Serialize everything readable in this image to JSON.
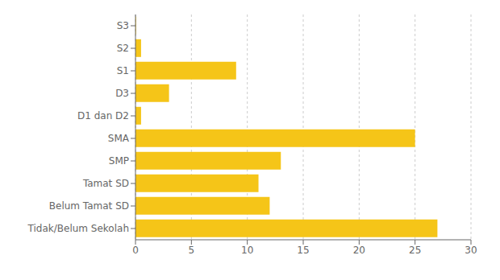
{
  "chart_data": {
    "type": "bar",
    "orientation": "horizontal",
    "categories": [
      "S3",
      "S2",
      "S1",
      "D3",
      "D1 dan D2",
      "SMA",
      "SMP",
      "Tamat SD",
      "Belum Tamat SD",
      "Tidak/Belum Sekolah"
    ],
    "values": [
      0.05,
      0.5,
      9.0,
      3.0,
      0.5,
      25.0,
      13.0,
      11.0,
      12.0,
      27.0
    ],
    "color": "#F5C518",
    "xlim": [
      0,
      30
    ],
    "xticks": [
      0,
      5,
      10,
      15,
      20,
      25,
      30
    ],
    "grid": true
  }
}
